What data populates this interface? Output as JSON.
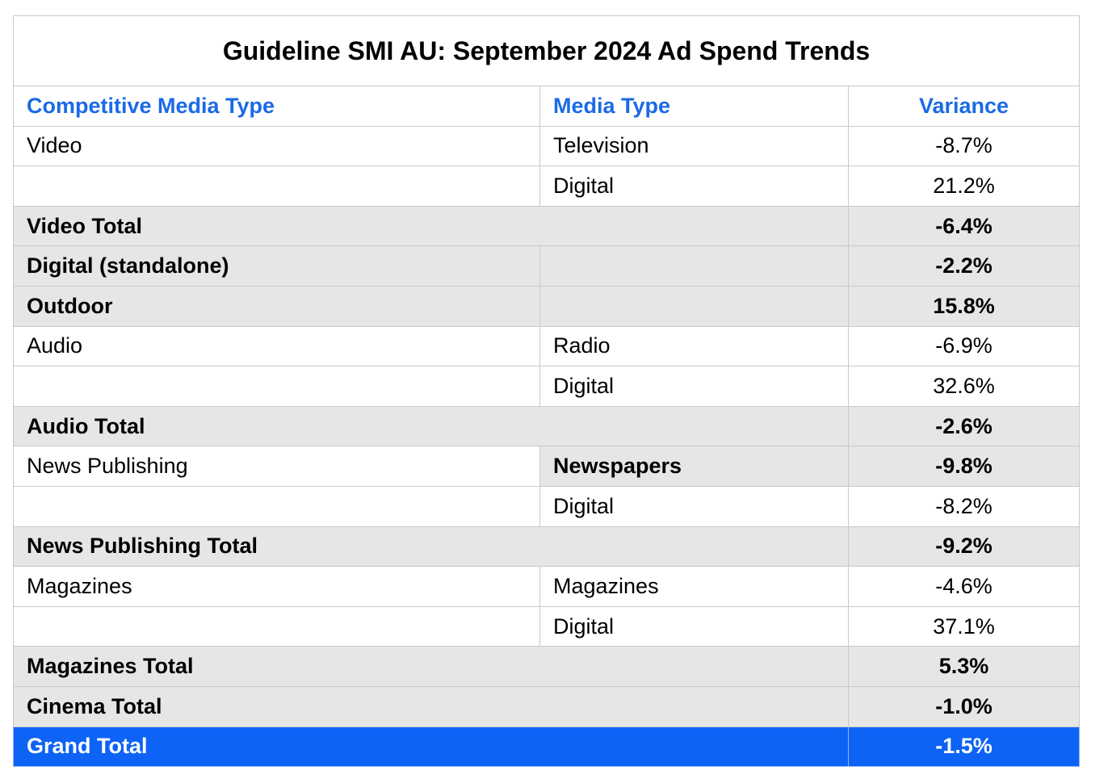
{
  "title": "Guideline SMI AU: September 2024 Ad Spend Trends",
  "headers": {
    "competitive_media_type": "Competitive Media Type",
    "media_type": "Media Type",
    "variance": "Variance"
  },
  "colors": {
    "header_text": "#1a6ae6",
    "total_row_bg": "#e6e6e6",
    "grand_total_bg": "#0d63f5",
    "grand_total_text": "#ffffff"
  },
  "rows": [
    {
      "competitive": "Video",
      "media": "Television",
      "variance": "-8.7%"
    },
    {
      "competitive": "",
      "media": "Digital",
      "variance": "21.2%"
    },
    {
      "competitive": "Video Total",
      "media": "",
      "variance": "-6.4%"
    },
    {
      "competitive": "Digital (standalone)",
      "media": "",
      "variance": "-2.2%"
    },
    {
      "competitive": "Outdoor",
      "media": "",
      "variance": "15.8%"
    },
    {
      "competitive": "Audio",
      "media": "Radio",
      "variance": "-6.9%"
    },
    {
      "competitive": "",
      "media": "Digital",
      "variance": "32.6%"
    },
    {
      "competitive": "Audio Total",
      "media": "",
      "variance": "-2.6%"
    },
    {
      "competitive": "News Publishing",
      "media": "Newspapers",
      "variance": "-9.8%"
    },
    {
      "competitive": "",
      "media": "Digital",
      "variance": "-8.2%"
    },
    {
      "competitive": "News Publishing Total",
      "media": "",
      "variance": "-9.2%"
    },
    {
      "competitive": "Magazines",
      "media": "Magazines",
      "variance": "-4.6%"
    },
    {
      "competitive": "",
      "media": "Digital",
      "variance": "37.1%"
    },
    {
      "competitive": "Magazines Total",
      "media": "",
      "variance": "5.3%"
    },
    {
      "competitive": "Cinema Total",
      "media": "",
      "variance": "-1.0%"
    },
    {
      "competitive": "Grand Total",
      "media": "",
      "variance": "-1.5%"
    }
  ]
}
